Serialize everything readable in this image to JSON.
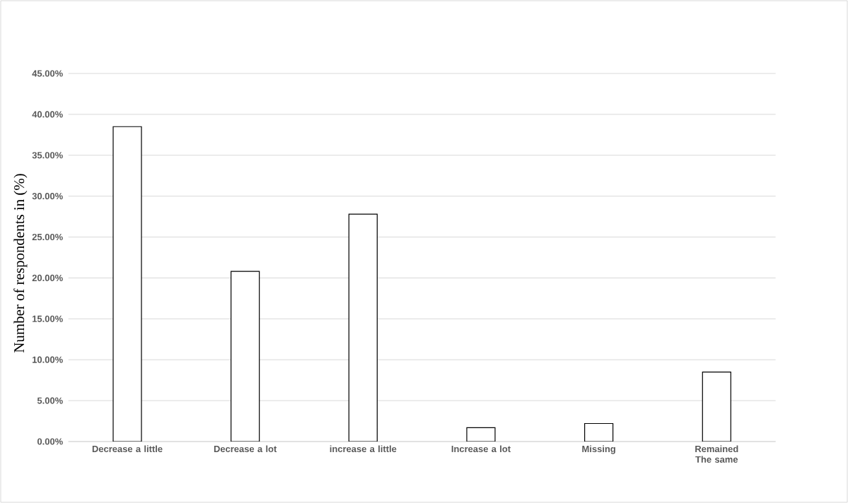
{
  "chart_data": {
    "type": "bar",
    "ylabel": "Number of respondents in (%)",
    "categories": [
      "Decrease a little",
      "Decrease a lot",
      "increase a little",
      "Increase a lot",
      "Missing",
      "Remained The same"
    ],
    "values": [
      38.5,
      20.8,
      27.8,
      1.7,
      2.2,
      8.5
    ],
    "color": "#ffffff",
    "ylim": [
      0,
      45
    ],
    "yticks": [
      {
        "value": 0,
        "label": "0.00%"
      },
      {
        "value": 5,
        "label": "5.00%"
      },
      {
        "value": 10,
        "label": "10.00%"
      },
      {
        "value": 15,
        "label": "15.00%"
      },
      {
        "value": 20,
        "label": "20.00%"
      },
      {
        "value": 25,
        "label": "25.00%"
      },
      {
        "value": 30,
        "label": "30.00%"
      },
      {
        "value": 35,
        "label": "35.00%"
      },
      {
        "value": 40,
        "label": "40.00%"
      },
      {
        "value": 45,
        "label": "45.00%"
      }
    ],
    "grid": "y"
  }
}
